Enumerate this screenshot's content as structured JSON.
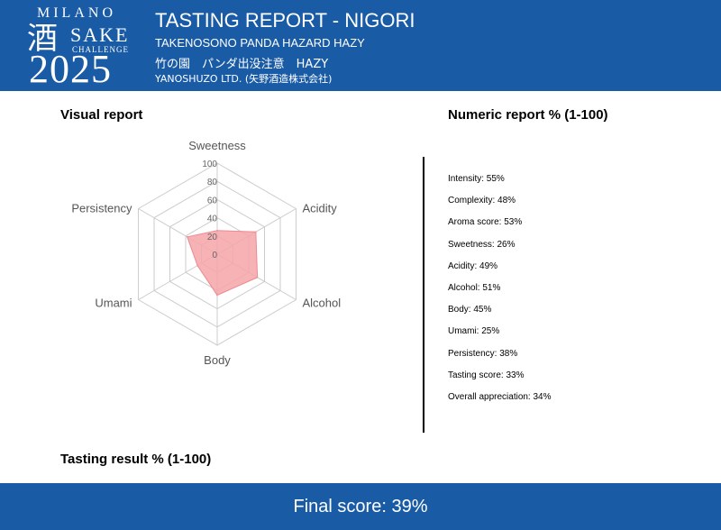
{
  "header": {
    "logo": {
      "city": "MILANO",
      "kanji": "酒",
      "word": "SAKE",
      "sub": "CHALLENGE",
      "year": "2025"
    },
    "title": "TASTING REPORT - NIGORI",
    "product_en": "TAKENOSONO PANDA HAZARD HAZY",
    "product_jp": "竹の園　パンダ出没注意　HAZY",
    "brewery": "YANOSHUZO LTD. (矢野酒造株式会社)"
  },
  "sections": {
    "visual": "Visual report",
    "numeric": "Numeric report % (1-100)",
    "result": "Tasting result % (1-100)"
  },
  "metrics": [
    "Intensity: 55%",
    "Complexity: 48%",
    "Aroma score: 53%",
    "Sweetness: 26%",
    "Acidity: 49%",
    "Alcohol: 51%",
    "Body: 45%",
    "Umami: 25%",
    "Persistency: 38%",
    "Tasting score: 33%",
    "Overall appreciation: 34%"
  ],
  "footer": {
    "final_score": "Final score: 39%"
  },
  "chart_data": {
    "type": "radar",
    "categories": [
      "Sweetness",
      "Acidity",
      "Alcohol",
      "Body",
      "Umami",
      "Persistency"
    ],
    "values": [
      26,
      49,
      51,
      45,
      25,
      38
    ],
    "ticks": [
      "0",
      "20",
      "40",
      "60",
      "80",
      "100"
    ],
    "rlim": [
      0,
      100
    ],
    "grid": true,
    "fill_color": "#f4a4a8",
    "stroke_color": "#ec8a90",
    "grid_color": "#cccccc"
  }
}
